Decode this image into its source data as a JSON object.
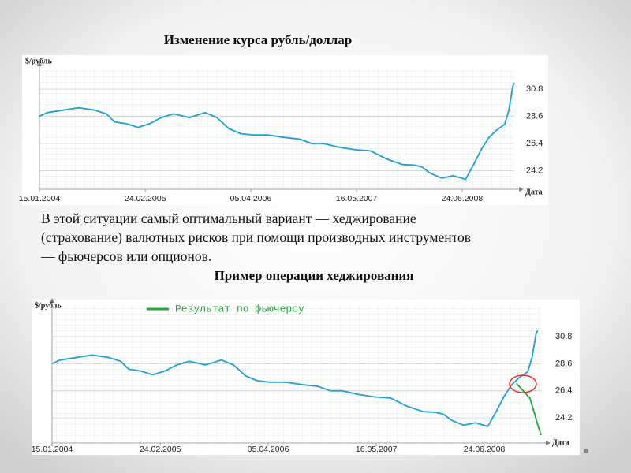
{
  "text": [
    "В этой ситуации самый оптимальный вариант — хеджирование",
    "(страхование) валютных рисков при помощи производных инструментов",
    "— фьючерсов или опционов."
  ],
  "chart_data": [
    {
      "type": "line",
      "title": "Изменение курса рубль/доллар",
      "y_label": "$/рубль",
      "x_label": "Дата",
      "xlim": [
        "15.01.2004",
        "10.01.2009"
      ],
      "xticks": [
        "15.01.2004",
        "24.02.2005",
        "05.04.2006",
        "16.05.2007",
        "24.06.2008"
      ],
      "ylim": [
        22.7,
        32.4
      ],
      "yticks": [
        {
          "value": 30.8,
          "label": "30.8"
        },
        {
          "value": 28.6,
          "label": "28.6"
        },
        {
          "value": 26.4,
          "label": "26.4"
        },
        {
          "value": 24.2,
          "label": "24.2"
        }
      ],
      "grid": true,
      "series": [
        {
          "color": "#1e9fd6",
          "x": [
            "15.01.2004",
            "14.02.2004",
            "15.04.2004",
            "14.06.2004",
            "14.08.2004",
            "28.09.2004",
            "29.10.2004",
            "13.12.2004",
            "27.01.2005",
            "13.03.2005",
            "27.04.2005",
            "13.06.2005",
            "12.08.2005",
            "12.10.2005",
            "26.11.2005",
            "11.01.2006",
            "25.02.2006",
            "11.04.2006",
            "10.06.2006",
            "10.08.2006",
            "10.10.2006",
            "24.11.2006",
            "08.01.2007",
            "10.03.2007",
            "10.05.2007",
            "09.07.2007",
            "08.09.2007",
            "08.11.2007",
            "23.12.2007",
            "22.01.2008",
            "22.02.2008",
            "07.04.2008",
            "22.05.2008",
            "07.07.2008",
            "06.08.2008",
            "05.09.2008",
            "05.10.2008",
            "04.11.2008",
            "04.12.2008",
            "20.12.2008",
            "04.01.2009",
            "10.01.2009"
          ],
          "values": [
            28.6,
            28.9,
            29.1,
            29.3,
            29.1,
            28.8,
            28.15,
            28.0,
            27.7,
            28.0,
            28.5,
            28.8,
            28.5,
            28.9,
            28.5,
            27.6,
            27.2,
            27.1,
            27.1,
            26.9,
            26.75,
            26.4,
            26.4,
            26.1,
            25.9,
            25.8,
            25.15,
            24.7,
            24.65,
            24.5,
            24.0,
            23.6,
            23.8,
            23.5,
            24.65,
            25.9,
            26.9,
            27.5,
            27.95,
            29.1,
            31.0,
            31.3
          ]
        }
      ]
    },
    {
      "type": "line",
      "title": "Пример операции хеджирования",
      "y_label": "$/рубль",
      "x_label": "Дата",
      "xlim": [
        "15.01.2004",
        "23.01.2009"
      ],
      "xticks": [
        "15.01.2004",
        "24.02.2005",
        "05.04.2006",
        "16.05.2007",
        "24.06.2008"
      ],
      "ylim": [
        22.15,
        33.3
      ],
      "yticks": [
        {
          "value": 30.8,
          "label": "30.8"
        },
        {
          "value": 28.6,
          "label": "28.6"
        },
        {
          "value": 26.4,
          "label": "26.4"
        },
        {
          "value": 24.2,
          "label": "24.2"
        }
      ],
      "grid": true,
      "legend": "top-left",
      "series": [
        {
          "color": "#1e9fd6",
          "x": [
            "15.01.2004",
            "14.02.2004",
            "15.04.2004",
            "14.06.2004",
            "14.08.2004",
            "28.09.2004",
            "29.10.2004",
            "13.12.2004",
            "27.01.2005",
            "13.03.2005",
            "27.04.2005",
            "13.06.2005",
            "12.08.2005",
            "12.10.2005",
            "26.11.2005",
            "11.01.2006",
            "25.02.2006",
            "11.04.2006",
            "10.06.2006",
            "10.08.2006",
            "10.10.2006",
            "24.11.2006",
            "08.01.2007",
            "10.03.2007",
            "10.05.2007",
            "09.07.2007",
            "08.09.2007",
            "08.11.2007",
            "23.12.2007",
            "22.01.2008",
            "22.02.2008",
            "07.04.2008",
            "22.05.2008",
            "07.07.2008",
            "06.08.2008",
            "05.09.2008",
            "05.10.2008",
            "04.11.2008",
            "04.12.2008",
            "20.12.2008",
            "04.01.2009",
            "10.01.2009"
          ],
          "values": [
            28.6,
            28.9,
            29.1,
            29.3,
            29.1,
            28.8,
            28.15,
            28.0,
            27.7,
            28.0,
            28.5,
            28.8,
            28.5,
            28.9,
            28.5,
            27.6,
            27.2,
            27.1,
            27.1,
            26.9,
            26.75,
            26.4,
            26.4,
            26.1,
            25.9,
            25.8,
            25.15,
            24.7,
            24.65,
            24.5,
            24.0,
            23.6,
            23.8,
            23.5,
            24.65,
            25.9,
            26.9,
            27.5,
            27.95,
            29.1,
            31.0,
            31.3
          ]
        },
        {
          "name": "Результат по фьючерсу",
          "color": "#22a83a",
          "x": [
            "22.10.2008",
            "21.11.2008",
            "12.12.2008",
            "30.12.2008",
            "11.01.2009",
            "23.01.2009"
          ],
          "values": [
            27.0,
            26.3,
            25.8,
            24.5,
            23.6,
            22.8
          ]
        }
      ]
    }
  ]
}
